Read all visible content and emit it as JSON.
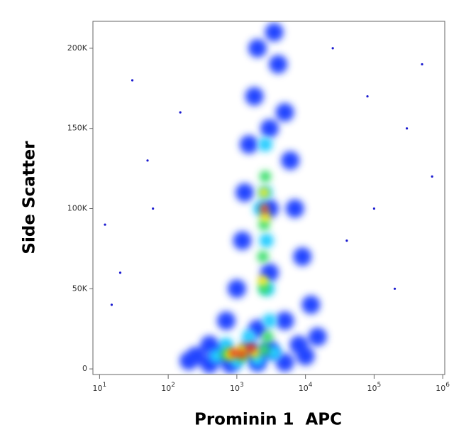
{
  "chart_data": {
    "type": "scatter",
    "x_label": "Prominin 1  APC",
    "y_label": "Side Scatter",
    "xscale": "log",
    "xlim": [
      8,
      1070000
    ],
    "ylim": [
      -3500,
      216800
    ],
    "xticks": [
      {
        "value": 10,
        "label": "10",
        "sup": "1"
      },
      {
        "value": 100,
        "label": "10",
        "sup": "2"
      },
      {
        "value": 1000,
        "label": "10",
        "sup": "3"
      },
      {
        "value": 10000,
        "label": "10",
        "sup": "4"
      },
      {
        "value": 100000,
        "label": "10",
        "sup": "5"
      },
      {
        "value": 1000000,
        "label": "10",
        "sup": "6"
      }
    ],
    "yticks": [
      0,
      {
        "value": 50000,
        "label": "50K"
      },
      {
        "value": 100000,
        "label": "100K"
      },
      {
        "value": 150000,
        "label": "150K"
      },
      {
        "value": 200000,
        "label": "200K"
      }
    ],
    "series": [
      {
        "color": "#1a1ad0",
        "x": [
          30,
          50,
          20,
          100000,
          300000,
          40000,
          15,
          500000,
          60,
          200000,
          150,
          25000,
          700000,
          12,
          80000
        ],
        "y": [
          180000,
          130000,
          60000,
          100000,
          150000,
          80000,
          40000,
          190000,
          100000,
          50000,
          160000,
          200000,
          120000,
          90000,
          170000
        ]
      },
      {
        "color": "#2244ff",
        "x": [
          200,
          400,
          800,
          2000,
          5000,
          10000,
          15000,
          12000,
          9000,
          7000,
          6000,
          5000,
          4000,
          3500,
          2000,
          1800,
          1500,
          1300,
          1200,
          1000,
          700,
          400,
          250,
          3000,
          3000,
          3000,
          5000,
          8000,
          2000,
          600,
          1500,
          3000
        ],
        "y": [
          5000,
          3000,
          3000,
          4000,
          4000,
          8000,
          20000,
          40000,
          70000,
          100000,
          130000,
          160000,
          190000,
          210000,
          200000,
          170000,
          140000,
          110000,
          80000,
          50000,
          30000,
          15000,
          8000,
          60000,
          100000,
          150000,
          30000,
          15000,
          25000,
          10000,
          12000,
          12000
        ]
      },
      {
        "color": "#22ccff",
        "x": [
          500,
          1000,
          2000,
          3500,
          3000,
          2800,
          2700,
          2600,
          2600,
          1500,
          700,
          2200
        ],
        "y": [
          8000,
          5000,
          6000,
          10000,
          30000,
          50000,
          80000,
          110000,
          140000,
          20000,
          15000,
          100000
        ]
      },
      {
        "color": "#33dd66",
        "x": [
          700,
          1200,
          2500,
          2800,
          2500,
          2500,
          2600,
          2400
        ],
        "y": [
          9000,
          8000,
          12000,
          20000,
          50000,
          90000,
          120000,
          70000
        ]
      },
      {
        "color": "#ffee00",
        "x": [
          800,
          1200,
          1800,
          2600,
          2500,
          2400
        ],
        "y": [
          9000,
          12000,
          10000,
          95000,
          110000,
          55000
        ]
      },
      {
        "color": "#ff2a00",
        "x": [
          900,
          1200,
          1600,
          2500
        ],
        "y": [
          10000,
          9000,
          13000,
          100000
        ]
      }
    ]
  }
}
